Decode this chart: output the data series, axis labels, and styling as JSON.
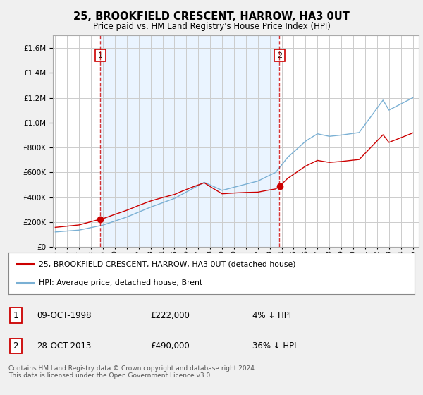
{
  "title": "25, BROOKFIELD CRESCENT, HARROW, HA3 0UT",
  "subtitle": "Price paid vs. HM Land Registry's House Price Index (HPI)",
  "sale1_year": 1998.79,
  "sale1_price": 222000,
  "sale2_year": 2013.81,
  "sale2_price": 490000,
  "hpi_color": "#7ab0d4",
  "price_color": "#cc0000",
  "vline_color": "#cc0000",
  "shade_color": "#ddeeff",
  "legend_label_price": "25, BROOKFIELD CRESCENT, HARROW, HA3 0UT (detached house)",
  "legend_label_hpi": "HPI: Average price, detached house, Brent",
  "table_rows": [
    {
      "num": "1",
      "date": "09-OCT-1998",
      "price": "£222,000",
      "pct": "4% ↓ HPI"
    },
    {
      "num": "2",
      "date": "28-OCT-2013",
      "price": "£490,000",
      "pct": "36% ↓ HPI"
    }
  ],
  "footer": "Contains HM Land Registry data © Crown copyright and database right 2024.\nThis data is licensed under the Open Government Licence v3.0.",
  "ylim_max": 1700000,
  "bg_color": "#f0f0f0",
  "plot_bg_color": "#ffffff",
  "grid_color": "#cccccc"
}
